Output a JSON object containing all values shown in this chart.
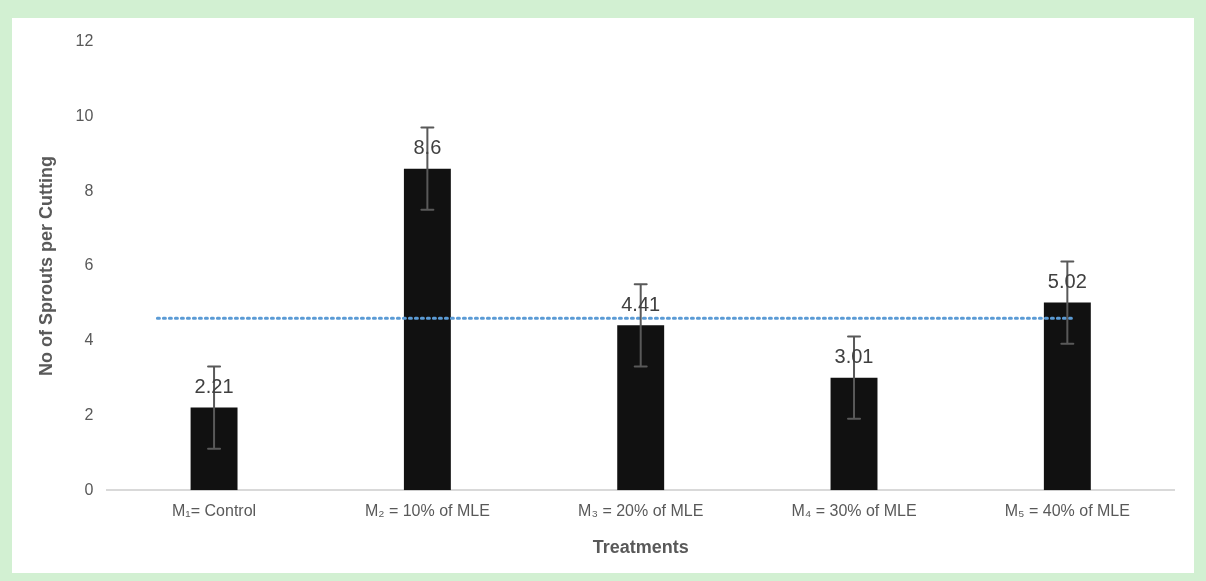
{
  "chart_data": {
    "type": "bar",
    "xlabel": "Treatments",
    "ylabel": "No of Sprouts per Cutting",
    "categories": [
      "M₁= Control",
      "M₂ = 10% of MLE",
      "M₃ = 20% of MLE",
      "M₄ = 30% of MLE",
      "M₅ = 40% of MLE"
    ],
    "values": [
      2.21,
      8.6,
      4.41,
      3.01,
      5.02
    ],
    "errors": [
      1.1,
      1.1,
      1.1,
      1.1,
      1.1
    ],
    "color": "#111111",
    "data_labels": true,
    "ylim": [
      0,
      12
    ],
    "yticks": [
      0,
      2,
      4,
      6,
      8,
      10,
      12
    ],
    "grid": false,
    "legend": false,
    "ref_lines": [
      {
        "axis": "y",
        "value": 4.6,
        "color": "#5b9bd5",
        "line_style": "dotted"
      }
    ]
  }
}
